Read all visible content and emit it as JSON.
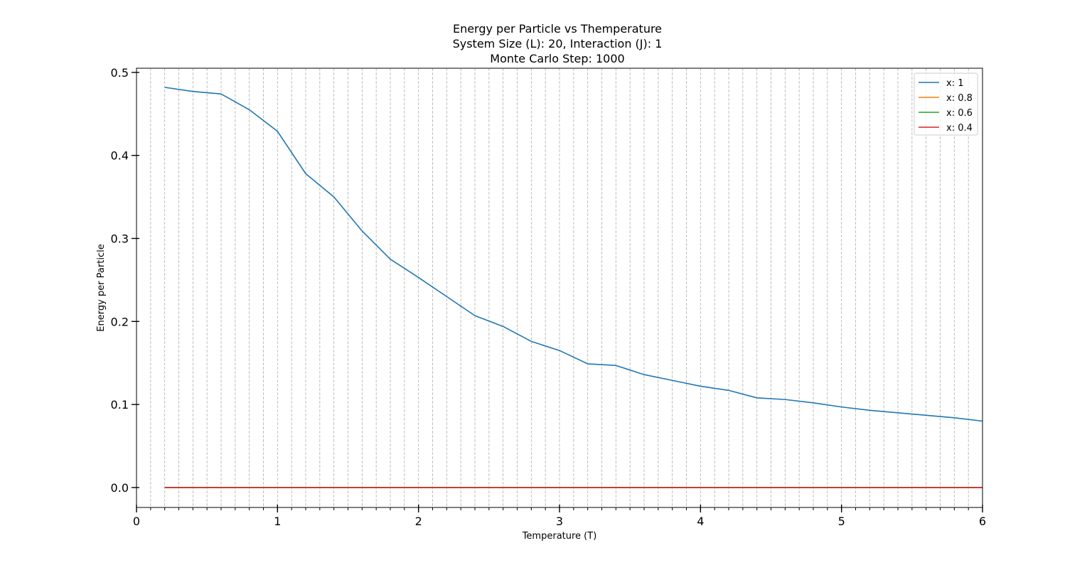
{
  "chart_data": {
    "type": "line",
    "title_lines": [
      "Energy per Particle vs Themperature",
      "System Size (L): 20, Interaction (J): 1",
      "Monte Carlo Step: 1000"
    ],
    "xlabel": "Temperature (T)",
    "ylabel": "Energy per Particle",
    "xlim": [
      0,
      6
    ],
    "ylim": [
      -0.024,
      0.505
    ],
    "x_ticks": [
      0,
      1,
      2,
      3,
      4,
      5,
      6
    ],
    "x_minor_step": 0.1,
    "y_ticks": [
      0.0,
      0.1,
      0.2,
      0.3,
      0.4,
      0.5
    ],
    "y_tick_labels": [
      "0.0",
      "0.1",
      "0.2",
      "0.3",
      "0.4",
      "0.5"
    ],
    "grid": "vertical dashed at every 0.1 in x",
    "legend_position": "top-right",
    "x": [
      0.2,
      0.4,
      0.6,
      0.8,
      1.0,
      1.2,
      1.4,
      1.6,
      1.8,
      2.0,
      2.2,
      2.4,
      2.6,
      2.8,
      3.0,
      3.2,
      3.4,
      3.6,
      3.8,
      4.0,
      4.2,
      4.4,
      4.6,
      4.8,
      5.0,
      5.2,
      5.4,
      5.6,
      5.8,
      6.0
    ],
    "series": [
      {
        "name": "x: 1",
        "color": "#1f77b4",
        "values": [
          0.482,
          0.477,
          0.474,
          0.455,
          0.429,
          0.378,
          0.35,
          0.309,
          0.275,
          0.253,
          0.23,
          0.207,
          0.194,
          0.176,
          0.165,
          0.149,
          0.147,
          0.136,
          0.129,
          0.122,
          0.117,
          0.108,
          0.106,
          0.102,
          0.097,
          0.093,
          0.09,
          0.087,
          0.084,
          0.08
        ]
      },
      {
        "name": "x: 0.8",
        "color": "#ff7f0e",
        "values": [
          0,
          0,
          0,
          0,
          0,
          0,
          0,
          0,
          0,
          0,
          0,
          0,
          0,
          0,
          0,
          0,
          0,
          0,
          0,
          0,
          0,
          0,
          0,
          0,
          0,
          0,
          0,
          0,
          0,
          0
        ]
      },
      {
        "name": "x: 0.6",
        "color": "#2ca02c",
        "values": [
          0,
          0,
          0,
          0,
          0,
          0,
          0,
          0,
          0,
          0,
          0,
          0,
          0,
          0,
          0,
          0,
          0,
          0,
          0,
          0,
          0,
          0,
          0,
          0,
          0,
          0,
          0,
          0,
          0,
          0
        ]
      },
      {
        "name": "x: 0.4",
        "color": "#d62728",
        "values": [
          0,
          0,
          0,
          0,
          0,
          0,
          0,
          0,
          0,
          0,
          0,
          0,
          0,
          0,
          0,
          0,
          0,
          0,
          0,
          0,
          0,
          0,
          0,
          0,
          0,
          0,
          0,
          0,
          0,
          0
        ]
      }
    ]
  }
}
